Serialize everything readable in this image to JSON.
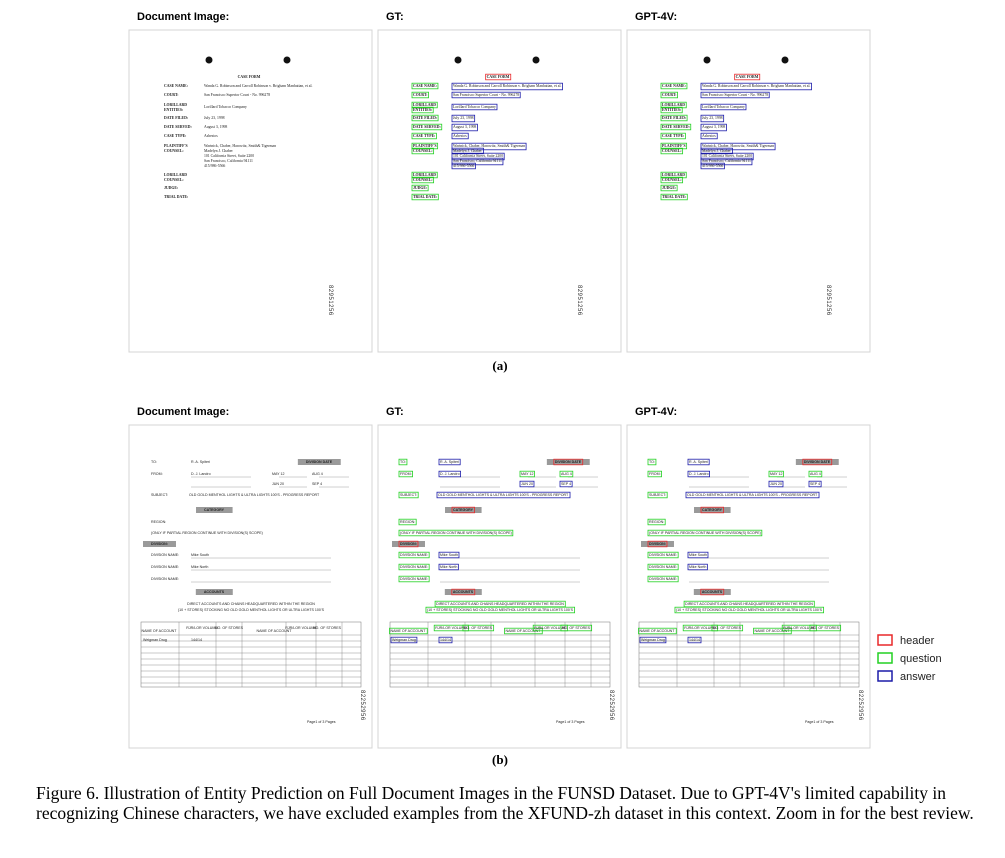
{
  "columns": [
    "Document Image:",
    "GT:",
    "GPT-4V:"
  ],
  "legend": [
    {
      "label": "header",
      "color": "#e8282a"
    },
    {
      "label": "question",
      "color": "#22d022"
    },
    {
      "label": "answer",
      "color": "#1c1ca8"
    }
  ],
  "rows": [
    {
      "label": "(a)",
      "stamp": "82951256",
      "items": [
        {
          "text": "CASE FORM",
          "role": "header"
        },
        {
          "text": "CASE NAME:",
          "role": "question"
        },
        {
          "text": "Wanda G. Robinson and Carroll Robinson v. Brigham Manhattan, et al.",
          "role": "answer"
        },
        {
          "text": "COURT:",
          "role": "question"
        },
        {
          "text": "San Francisco Superior Court - No. 996278",
          "role": "answer"
        },
        {
          "text": "LORILLARD",
          "role": "question"
        },
        {
          "text": "ENTITIES:",
          "role": "question"
        },
        {
          "text": "Lorillard Tobacco Company",
          "role": "answer"
        },
        {
          "text": "DATE FILED:",
          "role": "question"
        },
        {
          "text": "July 23, 1998",
          "role": "answer"
        },
        {
          "text": "DATE SERVED:",
          "role": "question"
        },
        {
          "text": "August 3, 1998",
          "role": "answer"
        },
        {
          "text": "CASE TYPE:",
          "role": "question"
        },
        {
          "text": "Asbestos",
          "role": "answer"
        },
        {
          "text": "PLAINTIFF'S",
          "role": "question"
        },
        {
          "text": "COUNSEL:",
          "role": "question"
        },
        {
          "text": "Wartnick, Chaber, Harowitz, Smith& Tigerman",
          "role": "answer"
        },
        {
          "text": "Madelyn J. Chaber",
          "role": "answer"
        },
        {
          "text": "101 California Street, Suite 2200",
          "role": "answer"
        },
        {
          "text": "San Francisco, California 94111",
          "role": "answer"
        },
        {
          "text": "415/986-5566",
          "role": "answer"
        },
        {
          "text": "LORILLARD",
          "role": "question"
        },
        {
          "text": "COUNSEL:",
          "role": "question"
        },
        {
          "text": "JUDGE:",
          "role": "question"
        },
        {
          "text": "TRIAL DATE:",
          "role": "question"
        }
      ]
    },
    {
      "label": "(b)",
      "stamp": "82252956",
      "items": [
        {
          "text": "TO:",
          "role": "question"
        },
        {
          "text": "R. A. Spiteri",
          "role": "answer"
        },
        {
          "text": "DIVISION DATE",
          "role": "header"
        },
        {
          "text": "FROM:",
          "role": "question"
        },
        {
          "text": "D. J. Landro",
          "role": "answer"
        },
        {
          "text": "MAY 12",
          "role": "question"
        },
        {
          "text": "AUG 4",
          "role": "question"
        },
        {
          "text": "JUN 20",
          "role": "answer"
        },
        {
          "text": "SEP 4",
          "role": "answer"
        },
        {
          "text": "SUBJECT:",
          "role": "question"
        },
        {
          "text": "OLD GOLD MENTHOL LIGHTS & ULTRA LIGHTS 100'S - PROGRESS REPORT",
          "role": "answer"
        },
        {
          "text": "CATEGORY",
          "role": "header"
        },
        {
          "text": "REGION:",
          "role": "question"
        },
        {
          "text": "(ONLY IF PARTIAL REGION CONTINUE WITH DIVISION(S) SCOPE)",
          "role": "question"
        },
        {
          "text": "DIVISION:",
          "role": "header"
        },
        {
          "text": "DIVISION NAME:",
          "role": "question"
        },
        {
          "text": "Mike South",
          "role": "answer"
        },
        {
          "text": "DIVISION NAME:",
          "role": "question"
        },
        {
          "text": "Mike North",
          "role": "answer"
        },
        {
          "text": "DIVISION NAME:",
          "role": "question"
        },
        {
          "text": "ACCOUNTS",
          "role": "header"
        },
        {
          "text": "DIRECT ACCOUNTS AND CHAINS HEADQUARTERED WITHIN THE REGION",
          "role": "question"
        },
        {
          "text": "(10 + STORES) STOCKING NO OLD GOLD MENTHOL LIGHTS OR ULTRA LIGHTS 100'S",
          "role": "question"
        },
        {
          "text": "NAME OF ACCOUNT",
          "role": "question"
        },
        {
          "text": "RJR/LOR VOLUME",
          "role": "question"
        },
        {
          "text": "NO. OF STORES",
          "role": "question"
        },
        {
          "text": "NAME OF ACCOUNT",
          "role": "question"
        },
        {
          "text": "RJR/LOR VOLUME",
          "role": "question"
        },
        {
          "text": "NO. OF STORES",
          "role": "question"
        },
        {
          "text": "Weigman Drug",
          "role": "answer"
        },
        {
          "text": "144/14",
          "role": "answer"
        },
        {
          "text": "Page1 of 3 Pages"
        }
      ]
    }
  ],
  "caption": "Figure 6. Illustration of Entity Prediction on Full Document Images in the FUNSD Dataset. Due to GPT-4V's limited capability in recognizing Chinese characters, we have excluded examples from the XFUND-zh dataset in this context. Zoom in for the best review."
}
